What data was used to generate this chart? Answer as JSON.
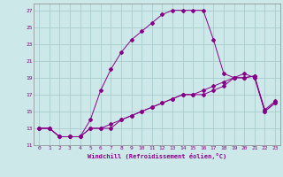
{
  "title": "",
  "xlabel": "Windchill (Refroidissement éolien,°C)",
  "ylabel": "",
  "background_color": "#cce8e8",
  "grid_color": "#aacccc",
  "line_color": "#880088",
  "xlim": [
    -0.5,
    23.5
  ],
  "ylim": [
    11,
    27.8
  ],
  "xticks": [
    0,
    1,
    2,
    3,
    4,
    5,
    6,
    7,
    8,
    9,
    10,
    11,
    12,
    13,
    14,
    15,
    16,
    17,
    18,
    19,
    20,
    21,
    22,
    23
  ],
  "yticks": [
    11,
    13,
    15,
    17,
    19,
    21,
    23,
    25,
    27
  ],
  "curve1_x": [
    0,
    1,
    2,
    3,
    4,
    5,
    6,
    7,
    8,
    9,
    10,
    11,
    12,
    13,
    14,
    15,
    16,
    17,
    18,
    19,
    20,
    21,
    22,
    23
  ],
  "curve1_y": [
    13,
    13,
    12,
    12,
    12,
    14,
    17.5,
    20,
    22,
    23.5,
    24.5,
    25.5,
    26.5,
    27,
    27,
    27,
    27,
    23.5,
    19.5,
    19,
    19.5,
    19,
    15,
    16
  ],
  "curve2_x": [
    0,
    1,
    2,
    3,
    4,
    5,
    6,
    7,
    8,
    9,
    10,
    11,
    12,
    13,
    14,
    15,
    16,
    17,
    18,
    19,
    20,
    21,
    22,
    23
  ],
  "curve2_y": [
    13,
    13,
    12,
    12,
    12,
    13,
    13,
    13,
    14,
    14.5,
    15,
    15.5,
    16,
    16.5,
    17,
    17,
    17.5,
    18,
    18.5,
    19,
    19,
    19.2,
    15,
    16
  ],
  "curve3_x": [
    0,
    1,
    2,
    3,
    4,
    5,
    6,
    7,
    8,
    9,
    10,
    11,
    12,
    13,
    14,
    15,
    16,
    17,
    18,
    19,
    20,
    21,
    22,
    23
  ],
  "curve3_y": [
    13,
    13,
    12,
    12,
    12,
    13,
    13,
    13.5,
    14,
    14.5,
    15,
    15.5,
    16,
    16.5,
    17,
    17,
    17,
    17.5,
    18,
    19,
    19,
    19.2,
    15.2,
    16.2
  ],
  "tick_fontsize": 4.5,
  "xlabel_fontsize": 5.0,
  "marker_size": 2.0,
  "linewidth": 0.7
}
